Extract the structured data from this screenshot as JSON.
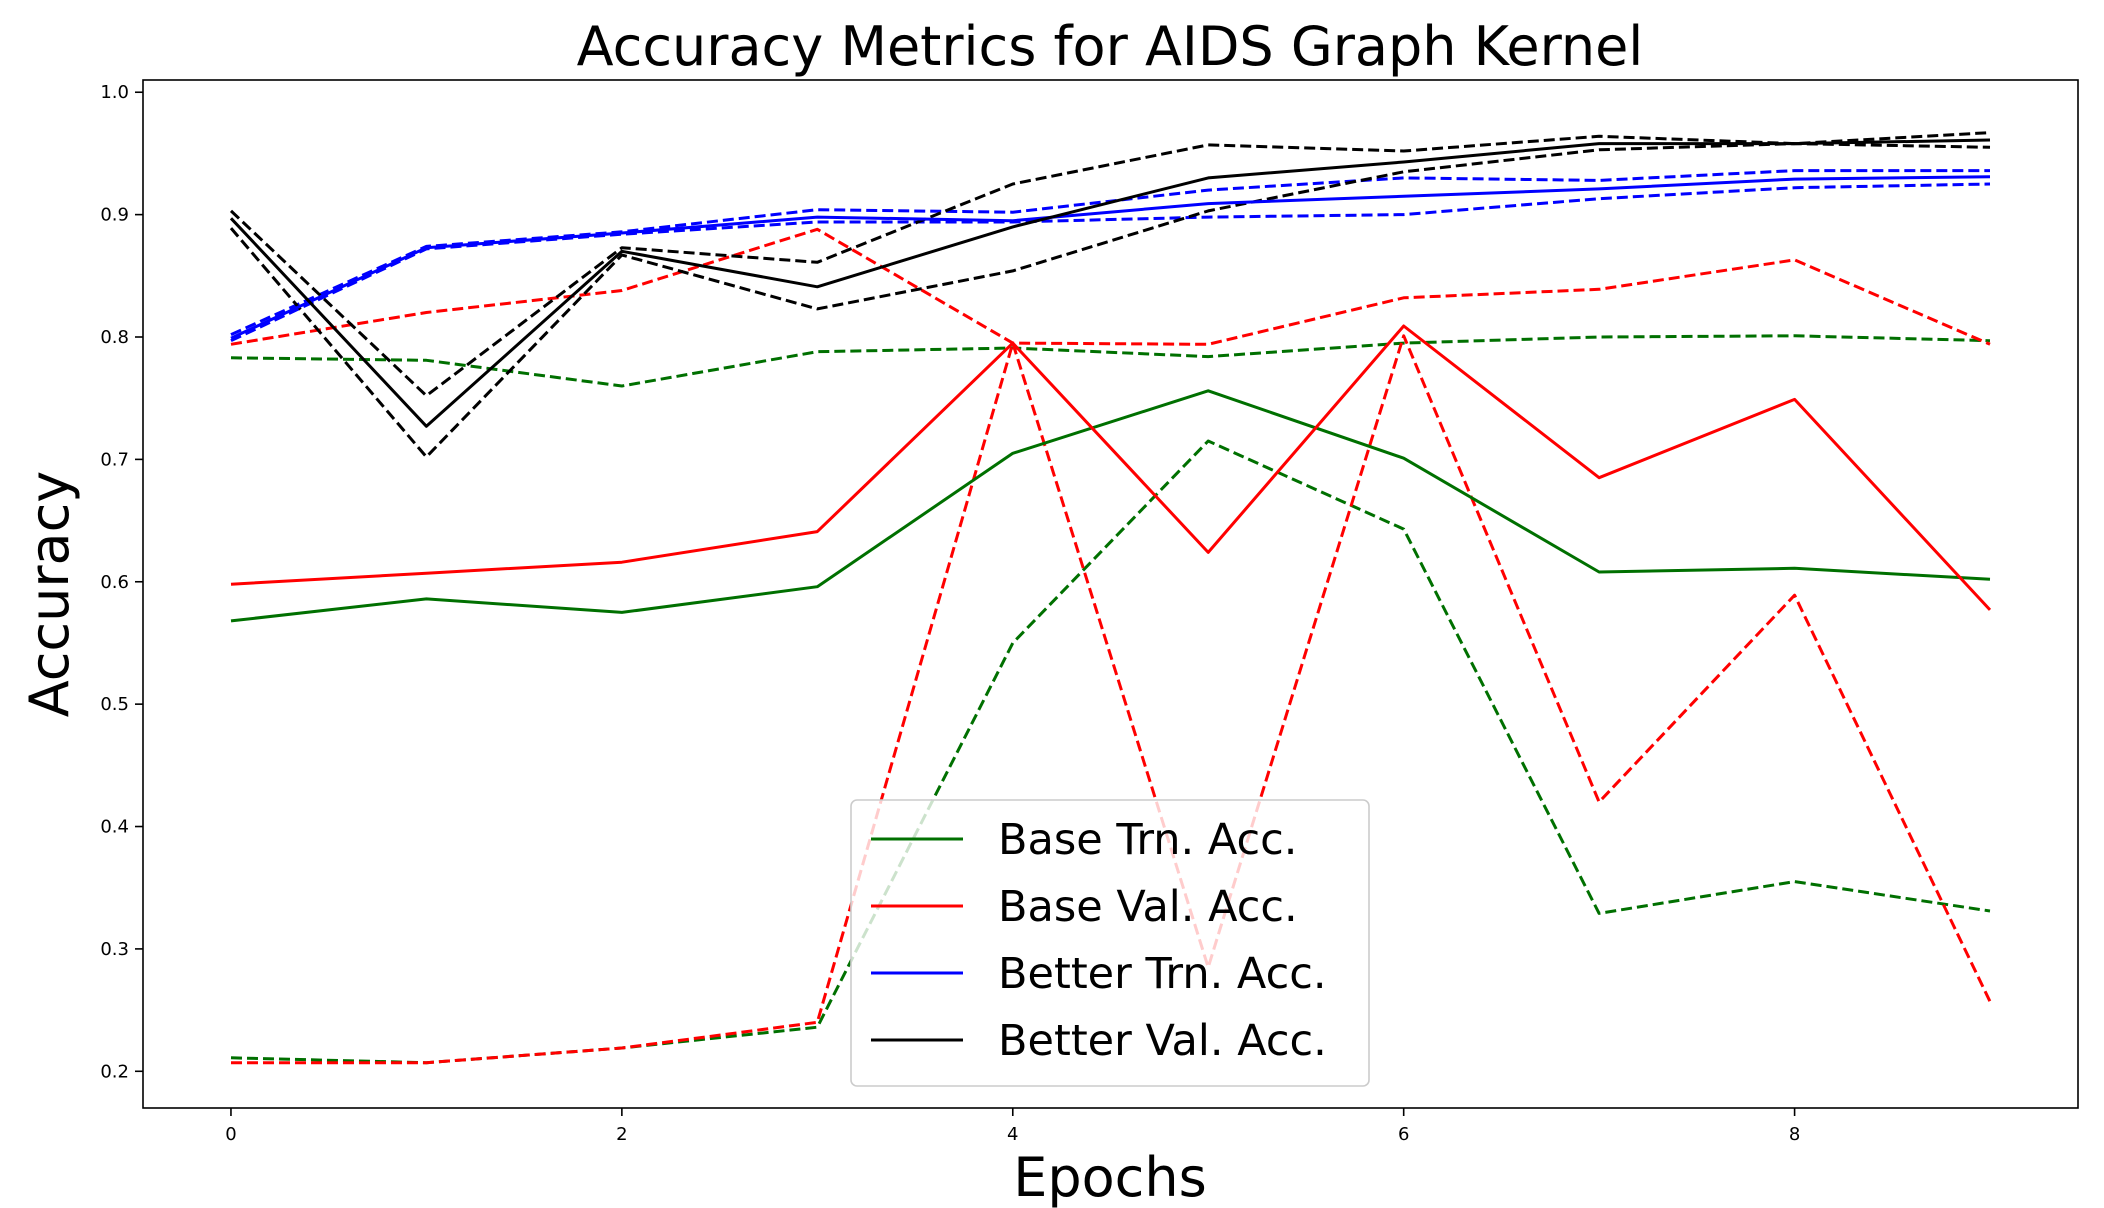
{
  "chart_data": {
    "type": "line",
    "title": "Accuracy Metrics for AIDS Graph Kernel",
    "xlabel": "Epochs",
    "ylabel": "Accuracy",
    "xlim": [
      -0.45,
      9.45
    ],
    "ylim": [
      0.17,
      1.01
    ],
    "xticks": [
      0,
      2,
      4,
      6,
      8
    ],
    "yticks": [
      0.2,
      0.3,
      0.4,
      0.5,
      0.6,
      0.7,
      0.8,
      0.9,
      1.0
    ],
    "x": [
      0,
      1,
      2,
      3,
      4,
      5,
      6,
      7,
      8,
      9
    ],
    "grid": false,
    "legend_position": "lower-center",
    "series": [
      {
        "name": "Base Trn. Acc.",
        "color": "#007000",
        "style": "solid",
        "values": [
          0.568,
          0.586,
          0.575,
          0.596,
          0.705,
          0.756,
          0.701,
          0.608,
          0.611,
          0.602
        ]
      },
      {
        "name": "Base Val. Acc.",
        "color": "#ff0000",
        "style": "solid",
        "values": [
          0.598,
          0.607,
          0.616,
          0.641,
          0.795,
          0.624,
          0.809,
          0.685,
          0.749,
          0.577
        ]
      },
      {
        "name": "Better Trn. Acc.",
        "color": "#0000ff",
        "style": "solid",
        "values": [
          0.799,
          0.873,
          0.885,
          0.898,
          0.895,
          0.909,
          0.915,
          0.921,
          0.929,
          0.931
        ]
      },
      {
        "name": "Better Val. Acc.",
        "color": "#000000",
        "style": "solid",
        "values": [
          0.897,
          0.727,
          0.87,
          0.841,
          0.89,
          0.93,
          0.943,
          0.958,
          0.958,
          0.961
        ]
      },
      {
        "name": "",
        "color": "#007000",
        "style": "dashed",
        "values": [
          0.783,
          0.781,
          0.76,
          0.788,
          0.791,
          0.784,
          0.795,
          0.8,
          0.801,
          0.797
        ]
      },
      {
        "name": "",
        "color": "#007000",
        "style": "dashed",
        "values": [
          0.211,
          0.207,
          0.219,
          0.236,
          0.55,
          0.715,
          0.643,
          0.329,
          0.355,
          0.331
        ]
      },
      {
        "name": "",
        "color": "#ff0000",
        "style": "dashed",
        "values": [
          0.794,
          0.82,
          0.838,
          0.888,
          0.795,
          0.794,
          0.832,
          0.839,
          0.863,
          0.794
        ]
      },
      {
        "name": "",
        "color": "#ff0000",
        "style": "dashed",
        "values": [
          0.207,
          0.207,
          0.219,
          0.24,
          0.795,
          0.285,
          0.801,
          0.42,
          0.589,
          0.257
        ]
      },
      {
        "name": "",
        "color": "#0000ff",
        "style": "dashed",
        "values": [
          0.802,
          0.874,
          0.886,
          0.904,
          0.902,
          0.92,
          0.93,
          0.928,
          0.936,
          0.936
        ]
      },
      {
        "name": "",
        "color": "#0000ff",
        "style": "dashed",
        "values": [
          0.797,
          0.872,
          0.884,
          0.894,
          0.894,
          0.898,
          0.9,
          0.913,
          0.922,
          0.925
        ]
      },
      {
        "name": "",
        "color": "#000000",
        "style": "dashed",
        "values": [
          0.903,
          0.752,
          0.873,
          0.861,
          0.925,
          0.957,
          0.952,
          0.964,
          0.958,
          0.967
        ]
      },
      {
        "name": "",
        "color": "#000000",
        "style": "dashed",
        "values": [
          0.889,
          0.702,
          0.867,
          0.823,
          0.854,
          0.903,
          0.935,
          0.953,
          0.958,
          0.955
        ]
      }
    ]
  }
}
